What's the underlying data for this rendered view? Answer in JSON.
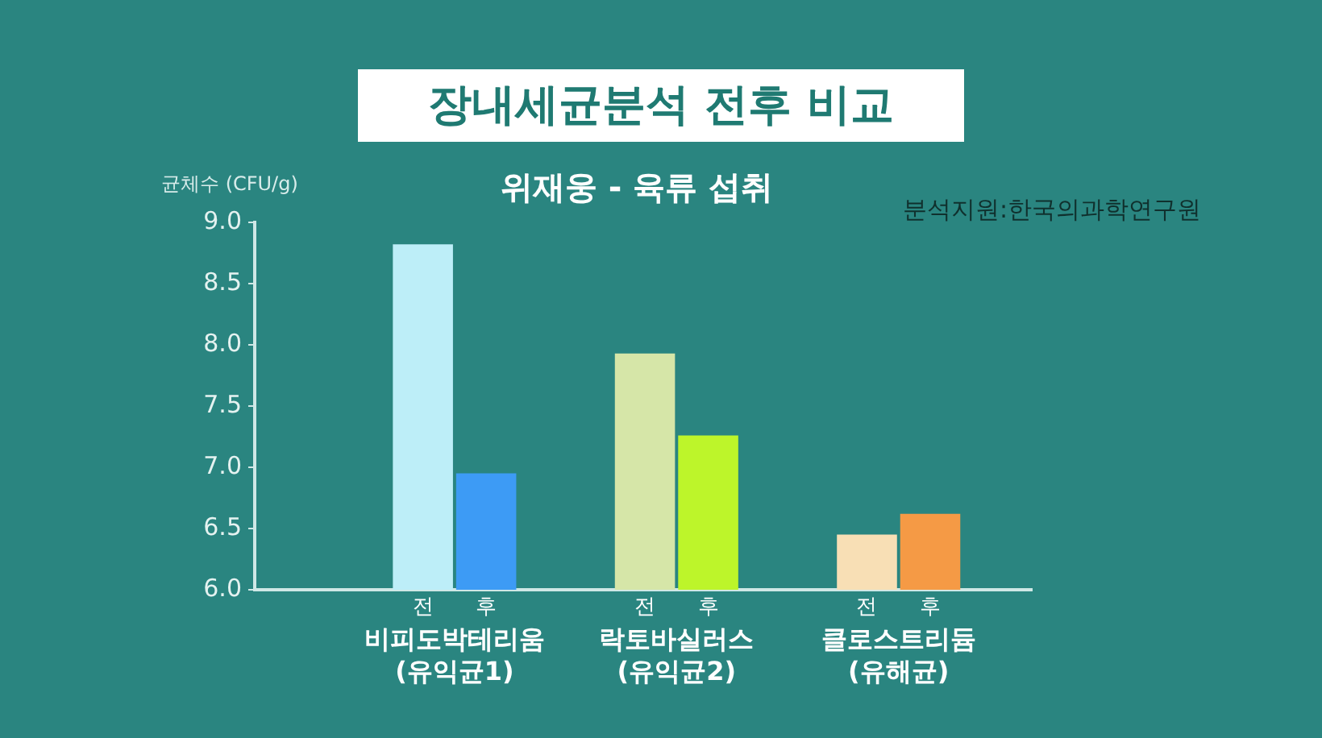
{
  "chart_data": {
    "type": "bar",
    "title": "장내세균분석 전후 비교",
    "subtitle": "위재웅 - 육류 섭취",
    "ylabel": "균체수 (CFU/g)",
    "annotations": [
      "분석지원:한국의과학연구원"
    ],
    "categories": [
      "비피도박테리움\n(유익균1)",
      "락토바실러스\n(유익균2)",
      "클로스트리듐\n(유해균)"
    ],
    "series": [
      {
        "name": "전",
        "colors": [
          "#bdeef8",
          "#d6e6a8",
          "#f8dfb5"
        ],
        "values": [
          8.82,
          7.93,
          6.45
        ]
      },
      {
        "name": "후",
        "colors": [
          "#3d9bf5",
          "#bdf52a",
          "#f59a45"
        ],
        "values": [
          6.95,
          7.26,
          6.62
        ]
      }
    ],
    "ylim": [
      6,
      9
    ],
    "yticks": [
      {
        "value": 6,
        "label": "6.0"
      },
      6.5,
      {
        "value": 7,
        "label": "7.0"
      },
      7.5,
      {
        "value": 8,
        "label": "8.0"
      },
      8.5,
      {
        "value": 9,
        "label": "9.0"
      }
    ],
    "grid": false,
    "legend": false
  }
}
